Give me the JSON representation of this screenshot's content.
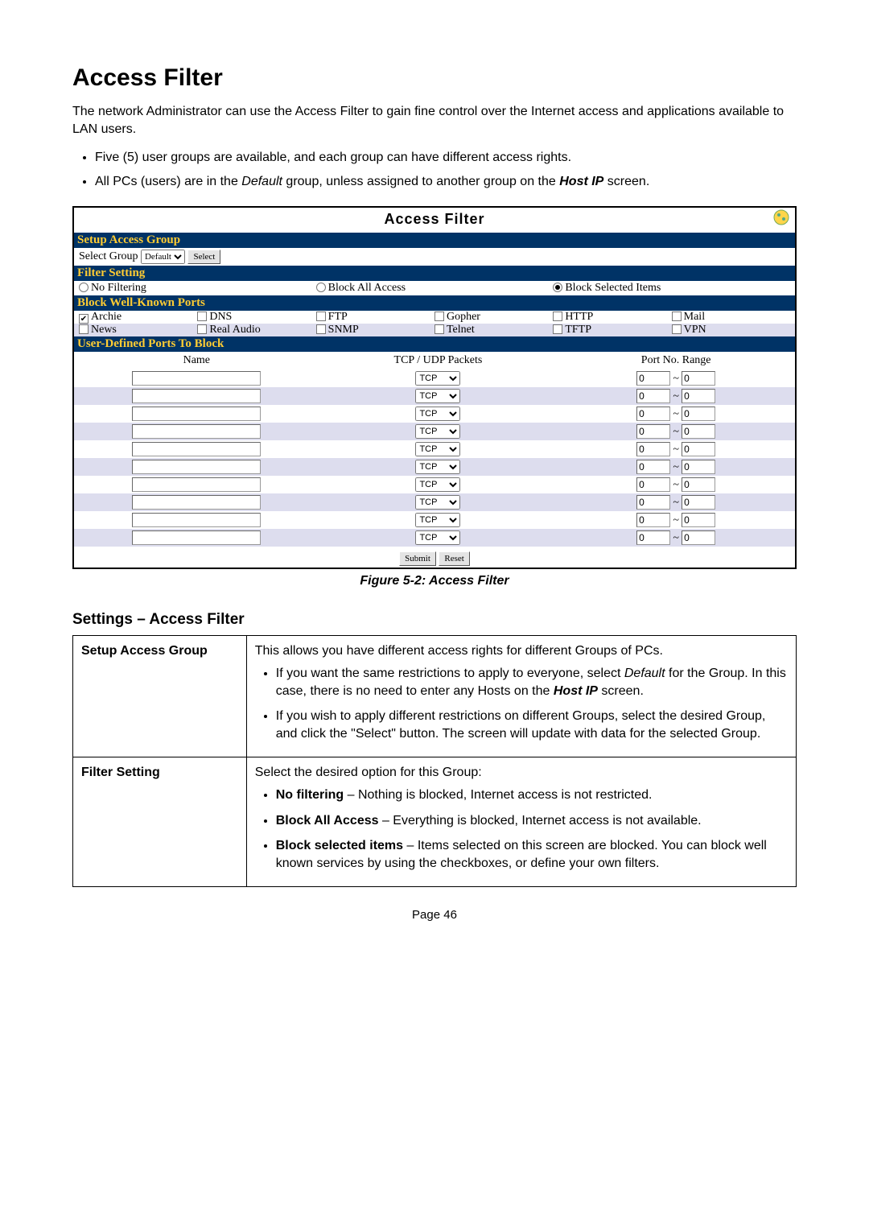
{
  "heading": "Access Filter",
  "intro": "The network Administrator can use the Access Filter to gain fine control over the Internet access and applications available to LAN users.",
  "bullets": {
    "b1": "Five (5) user groups are available, and each group can have different access rights.",
    "b2_pre": "All PCs (users) are in the ",
    "b2_default": "Default",
    "b2_mid": " group, unless assigned to another group on the ",
    "b2_hostip": "Host IP",
    "b2_post": " screen."
  },
  "panel": {
    "title": "Access Filter",
    "section_setup": "Setup Access Group",
    "select_group_label": "Select Group",
    "select_group_value": "Default",
    "select_btn": "Select",
    "section_filter": "Filter Setting",
    "opt_no_filtering": "No Filtering",
    "opt_block_all": "Block All Access",
    "opt_block_sel": "Block Selected Items",
    "section_block_ports": "Block Well-Known Ports",
    "archie": "Archie",
    "dns": "DNS",
    "ftp": "FTP",
    "gopher": "Gopher",
    "http": "HTTP",
    "mail": "Mail",
    "news": "News",
    "realaudio": "Real Audio",
    "snmp": "SNMP",
    "telnet": "Telnet",
    "tftp": "TFTP",
    "vpn": "VPN",
    "section_user_ports": "User-Defined Ports To Block",
    "hdr_name": "Name",
    "hdr_proto": "TCP / UDP Packets",
    "hdr_range": "Port No. Range",
    "proto_default": "TCP",
    "port_default": "0",
    "submit": "Submit",
    "reset": "Reset"
  },
  "caption": "Figure 5-2: Access Filter",
  "settings_title": "Settings – Access Filter",
  "table": {
    "r1_label": "Setup Access Group",
    "r1_intro": "This allows you have different access rights for different Groups of PCs.",
    "r1_li1_pre": "If you want the same restrictions to apply to everyone, select ",
    "r1_li1_default": "Default",
    "r1_li1_mid": " for the Group. In this case, there is no need to enter any Hosts on the ",
    "r1_li1_hostip": "Host IP",
    "r1_li1_post": " screen.",
    "r1_li2": "If you wish to apply different restrictions on different Groups, select the desired Group, and click the \"Select\" button. The screen will update with data for the selected Group.",
    "r2_label": "Filter Setting",
    "r2_intro": "Select the desired option for this Group:",
    "r2_li1_b": "No filtering",
    "r2_li1_t": " – Nothing is blocked, Internet access is not restricted.",
    "r2_li2_b": "Block All Access",
    "r2_li2_t": " – Everything is blocked, Internet access is not available.",
    "r2_li3_b": "Block selected items",
    "r2_li3_t": " – Items selected on this screen are blocked. You can block well known services by using the checkboxes, or define your own filters."
  },
  "page_num": "Page 46"
}
